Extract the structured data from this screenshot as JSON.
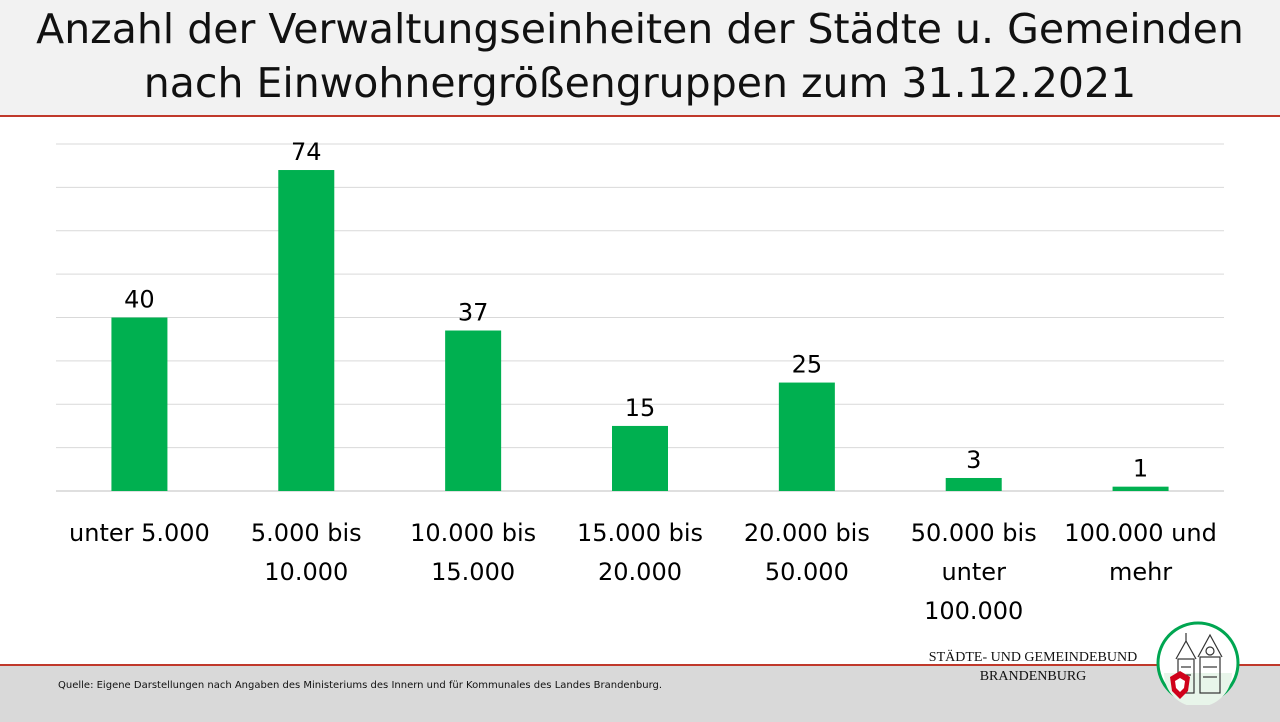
{
  "header": {
    "title_line1": "Anzahl der Verwaltungseinheiten der Städte u. Gemeinden",
    "title_line2": "nach Einwohnergrößengruppen zum 31.12.2021"
  },
  "chart_data": {
    "type": "bar",
    "title": "Anzahl der Verwaltungseinheiten der Städte u. Gemeinden nach Einwohnergrößengruppen zum 31.12.2021",
    "categories": [
      [
        "unter 5.000"
      ],
      [
        "5.000 bis",
        "10.000"
      ],
      [
        "10.000 bis",
        "15.000"
      ],
      [
        "15.000 bis",
        "20.000"
      ],
      [
        "20.000 bis",
        "50.000"
      ],
      [
        "50.000 bis",
        "unter",
        "100.000"
      ],
      [
        "100.000 und",
        "mehr"
      ]
    ],
    "values": [
      40,
      74,
      37,
      15,
      25,
      3,
      1
    ],
    "ylim": [
      0,
      80
    ],
    "grid": true,
    "data_labels": true,
    "bar_color": "#00b050",
    "xlabel": "",
    "ylabel": ""
  },
  "footer": {
    "source": "Quelle:  Eigene Darstellungen nach Angaben des Ministeriums des Innern und für Kommunales des Landes Brandenburg.",
    "org_line1": "STÄDTE-  UND GEMEINDEBUND",
    "org_line2": "BRANDENBURG"
  },
  "colors": {
    "accent_line": "#c0392b",
    "header_bg": "#f2f2f2",
    "footer_bg": "#d9d9d9",
    "logo_ring": "#00a651"
  },
  "icons": {
    "logo": "coat-of-arms-eagle-and-town-hall-icon"
  }
}
